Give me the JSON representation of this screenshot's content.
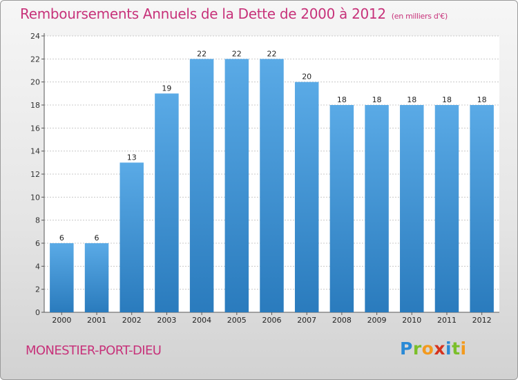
{
  "title": "Remboursements Annuels de la Dette de 2000 à 2012",
  "subtitle": "(en milliers d'€)",
  "commune": "MONESTIER-PORT-DIEU",
  "logo": {
    "letters": [
      "P",
      "r",
      "o",
      "x",
      "i",
      "t",
      "i"
    ],
    "colors": [
      "#2a8ad6",
      "#7bbf2a",
      "#f39a1e",
      "#d6331e",
      "#2a8ad6",
      "#7bbf2a",
      "#f39a1e"
    ]
  },
  "colors": {
    "bar_top": "#5aaae6",
    "bar_bottom": "#2a7bbd",
    "title": "#c7327a"
  },
  "chart_data": {
    "type": "bar",
    "categories": [
      "2000",
      "2001",
      "2002",
      "2003",
      "2004",
      "2005",
      "2006",
      "2007",
      "2008",
      "2009",
      "2010",
      "2011",
      "2012"
    ],
    "values": [
      6,
      6,
      13,
      19,
      22,
      22,
      22,
      20,
      18,
      18,
      18,
      18,
      18
    ],
    "ylim": [
      0,
      24
    ],
    "yticks": [
      0,
      2,
      4,
      6,
      8,
      10,
      12,
      14,
      16,
      18,
      20,
      22,
      24
    ],
    "grid": true,
    "data_labels": true
  }
}
